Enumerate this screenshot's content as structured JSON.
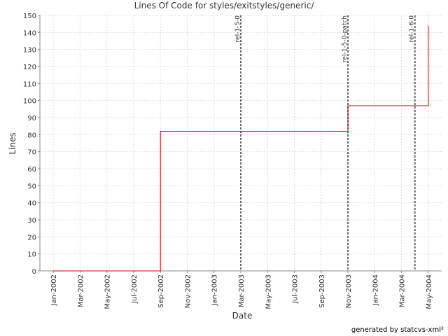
{
  "chart_data": {
    "type": "line",
    "title": "Lines Of Code for styles/exitstyles/generic/",
    "xlabel": "Date",
    "ylabel": "Lines",
    "footer": "generated by statcvs-xml²",
    "x": [
      "2002-01",
      "2002-09",
      "2002-09",
      "2003-11",
      "2003-11",
      "2004-05",
      "2004-05"
    ],
    "values": [
      0,
      0,
      82,
      82,
      97,
      97,
      144
    ],
    "color": "#cc0000",
    "grid": true,
    "xlim": [
      "2001-12",
      "2004-06"
    ],
    "xticks": [
      {
        "value": "2002-01",
        "label": "Jan-2002"
      },
      {
        "value": "2002-03",
        "label": "Mar-2002"
      },
      {
        "value": "2002-05",
        "label": "May-2002"
      },
      {
        "value": "2002-07",
        "label": "Jul-2002"
      },
      {
        "value": "2002-09",
        "label": "Sep-2002"
      },
      {
        "value": "2002-11",
        "label": "Nov-2002"
      },
      {
        "value": "2003-01",
        "label": "Jan-2003"
      },
      {
        "value": "2003-03",
        "label": "Mar-2003"
      },
      {
        "value": "2003-05",
        "label": "May-2003"
      },
      {
        "value": "2003-07",
        "label": "Jul-2003"
      },
      {
        "value": "2003-09",
        "label": "Sep-2003"
      },
      {
        "value": "2003-11",
        "label": "Nov-2003"
      },
      {
        "value": "2004-01",
        "label": "Jan-2004"
      },
      {
        "value": "2004-03",
        "label": "Mar-2004"
      },
      {
        "value": "2004-05",
        "label": "May-2004"
      }
    ],
    "ylim": [
      0,
      150
    ],
    "yticks": [
      0,
      10,
      20,
      30,
      40,
      50,
      60,
      70,
      80,
      90,
      100,
      110,
      120,
      130,
      140,
      150
    ],
    "markers": [
      {
        "x": "2003-03",
        "label": "rel-1-5-0"
      },
      {
        "x": "2003-11",
        "label": "rel-1-5-0-patch"
      },
      {
        "x": "2004-04",
        "label": "rel-1-6-0"
      }
    ]
  }
}
